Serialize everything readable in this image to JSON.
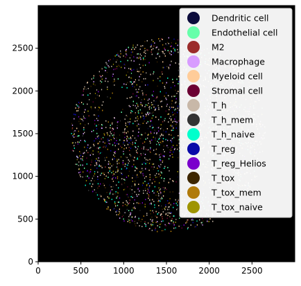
{
  "chart_data": {
    "type": "scatter",
    "title": "",
    "xlabel": "",
    "ylabel": "",
    "xlim": [
      0,
      3000
    ],
    "ylim": [
      0,
      3000
    ],
    "background": "#000000",
    "grid": false,
    "x_ticks": [
      0,
      500,
      1000,
      1500,
      2000,
      2500
    ],
    "y_ticks": [
      0,
      500,
      1000,
      1500,
      2000,
      2500
    ],
    "legend_position": "upper-right",
    "point_cloud": {
      "shape": "disk",
      "center": [
        1520,
        1490
      ],
      "radius": 1140,
      "dark_regions": [
        {
          "center": [
            880,
            1870
          ],
          "radius": 380
        },
        {
          "center": [
            1680,
            1060
          ],
          "radius": 280
        },
        {
          "center": [
            1420,
            2180
          ],
          "radius": 300
        }
      ]
    },
    "series": [
      {
        "name": "Dendritic cell",
        "color": "#0b0b3b",
        "share": 3
      },
      {
        "name": "Endothelial cell",
        "color": "#66ffaa",
        "share": 6
      },
      {
        "name": "M2",
        "color": "#9b2c2c",
        "share": 3
      },
      {
        "name": "Macrophage",
        "color": "#d89cff",
        "share": 7
      },
      {
        "name": "Myeloid cell",
        "color": "#ffcc99",
        "share": 10
      },
      {
        "name": "Stromal cell",
        "color": "#6b0033",
        "share": 4
      },
      {
        "name": "T_h",
        "color": "#c8b8a8",
        "share": 26
      },
      {
        "name": "T_h_mem",
        "color": "#333333",
        "share": 4
      },
      {
        "name": "T_h_naive",
        "color": "#00ffcc",
        "share": 5
      },
      {
        "name": "T_reg",
        "color": "#0a0aa8",
        "share": 5
      },
      {
        "name": "T_reg_Helios",
        "color": "#7a00cc",
        "share": 5
      },
      {
        "name": "T_tox",
        "color": "#3d2600",
        "share": 10
      },
      {
        "name": "T_tox_mem",
        "color": "#b07a0a",
        "share": 6
      },
      {
        "name": "T_tox_naive",
        "color": "#9e9400",
        "share": 6
      }
    ]
  }
}
